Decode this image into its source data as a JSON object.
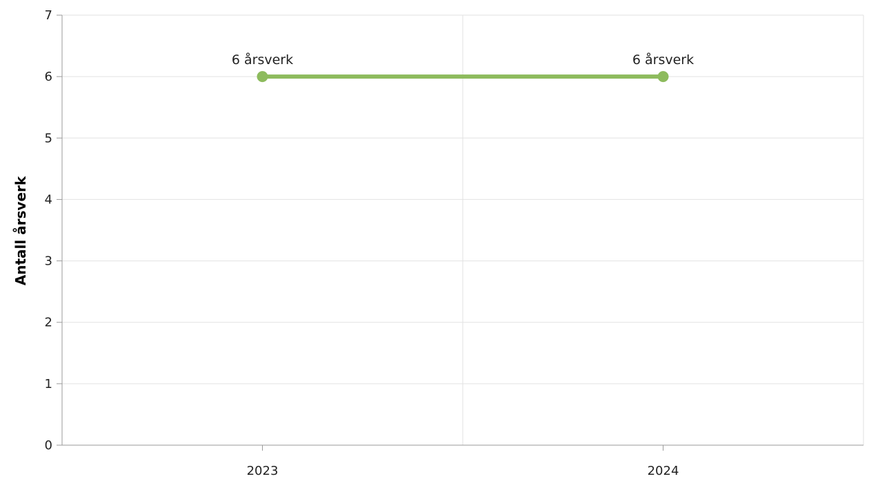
{
  "chart_data": {
    "type": "line",
    "categories": [
      "2023",
      "2024"
    ],
    "series": [
      {
        "values": [
          6,
          6
        ],
        "data_labels": [
          "6 årsverk",
          "6 årsverk"
        ],
        "color": "#8dbb5d"
      }
    ],
    "ylabel": "Antall årsverk",
    "ylim": [
      0,
      7
    ],
    "yticks": [
      "0",
      "1",
      "2",
      "3",
      "4",
      "5",
      "6",
      "7"
    ],
    "grid": true
  }
}
